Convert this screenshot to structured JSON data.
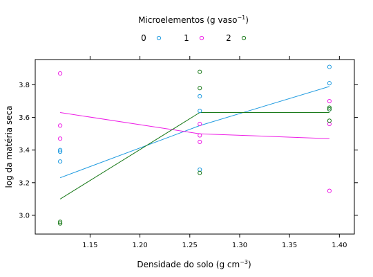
{
  "chart_data": {
    "type": "scatter",
    "title": "",
    "xlabel": "Densidade do solo (g cm",
    "xlabel_sup": "−3",
    "xlabel_end": ")",
    "ylabel": "log da matéria seca",
    "xlim": [
      1.095,
      1.415
    ],
    "ylim": [
      2.885,
      3.955
    ],
    "xticks": [
      1.15,
      1.2,
      1.25,
      1.3,
      1.35,
      1.4
    ],
    "xtick_labels": [
      "1.15",
      "1.20",
      "1.25",
      "1.30",
      "1.35",
      "1.40"
    ],
    "yticks": [
      3.0,
      3.2,
      3.4,
      3.6,
      3.8
    ],
    "ytick_labels": [
      "3.0",
      "3.2",
      "3.4",
      "3.6",
      "3.8"
    ],
    "grid": false,
    "legend": {
      "title_prefix": "Microelementos (g vaso",
      "title_sup": "−1",
      "title_suffix": ")",
      "placement": "top",
      "entries": [
        "0",
        "1",
        "2"
      ]
    },
    "series": [
      {
        "name": "0",
        "color": "#1f9be0",
        "points": [
          {
            "x": 1.12,
            "y": 3.4
          },
          {
            "x": 1.12,
            "y": 3.39
          },
          {
            "x": 1.12,
            "y": 3.33
          },
          {
            "x": 1.26,
            "y": 3.73
          },
          {
            "x": 1.26,
            "y": 3.64
          },
          {
            "x": 1.26,
            "y": 3.28
          },
          {
            "x": 1.39,
            "y": 3.91
          },
          {
            "x": 1.39,
            "y": 3.81
          },
          {
            "x": 1.39,
            "y": 3.65
          }
        ],
        "line": [
          {
            "x": 1.12,
            "y": 3.23
          },
          {
            "x": 1.26,
            "y": 3.55
          },
          {
            "x": 1.39,
            "y": 3.79
          }
        ]
      },
      {
        "name": "1",
        "color": "#ee1ee6",
        "points": [
          {
            "x": 1.12,
            "y": 3.87
          },
          {
            "x": 1.12,
            "y": 3.55
          },
          {
            "x": 1.12,
            "y": 3.47
          },
          {
            "x": 1.26,
            "y": 3.56
          },
          {
            "x": 1.26,
            "y": 3.49
          },
          {
            "x": 1.26,
            "y": 3.45
          },
          {
            "x": 1.39,
            "y": 3.7
          },
          {
            "x": 1.39,
            "y": 3.56
          },
          {
            "x": 1.39,
            "y": 3.15
          }
        ],
        "line": [
          {
            "x": 1.12,
            "y": 3.63
          },
          {
            "x": 1.26,
            "y": 3.5
          },
          {
            "x": 1.39,
            "y": 3.47
          }
        ]
      },
      {
        "name": "2",
        "color": "#1a7a1a",
        "points": [
          {
            "x": 1.12,
            "y": 2.96
          },
          {
            "x": 1.12,
            "y": 2.95
          },
          {
            "x": 1.26,
            "y": 3.88
          },
          {
            "x": 1.26,
            "y": 3.78
          },
          {
            "x": 1.26,
            "y": 3.26
          },
          {
            "x": 1.39,
            "y": 3.66
          },
          {
            "x": 1.39,
            "y": 3.65
          },
          {
            "x": 1.39,
            "y": 3.58
          }
        ],
        "line": [
          {
            "x": 1.12,
            "y": 3.1
          },
          {
            "x": 1.26,
            "y": 3.63
          },
          {
            "x": 1.39,
            "y": 3.63
          }
        ]
      }
    ]
  }
}
